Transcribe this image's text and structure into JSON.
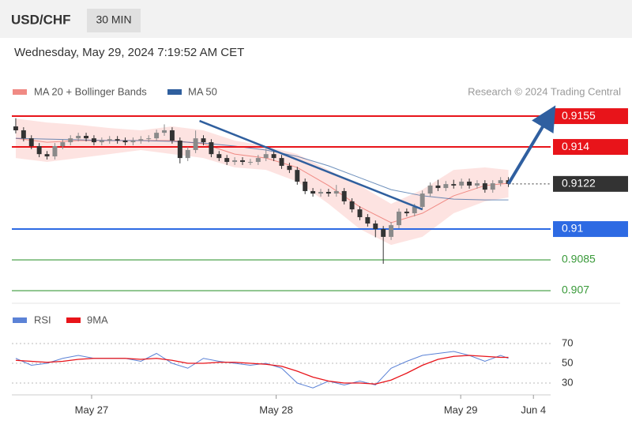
{
  "header": {
    "symbol": "USD/CHF",
    "interval": "30 MIN",
    "timestamp": "Wednesday, May 29, 2024 7:19:52 AM CET",
    "credit": "Research © 2024 Trading Central"
  },
  "chart_data": [
    {
      "type": "candlestick",
      "legend": [
        {
          "name": "MA 20 + Bollinger Bands",
          "color": "#f08a84"
        },
        {
          "name": "MA 50",
          "color": "#2f5f9e"
        }
      ],
      "candle_up_color": "#8a8a8a",
      "candle_down_color": "#333333",
      "xlim": [
        -0.5,
        68.4
      ],
      "ylim": [
        0.90654,
        0.91731
      ],
      "xticks": [
        {
          "value": 9.7,
          "label": "May 27"
        },
        {
          "value": 33.3,
          "label": "May 28"
        },
        {
          "value": 56.9,
          "label": "May 29"
        },
        {
          "value": 66.2,
          "label": "Jun 4"
        }
      ],
      "x": [
        0,
        1,
        2,
        3,
        4,
        5,
        6,
        7,
        8,
        9,
        10,
        11,
        12,
        13,
        14,
        15,
        16,
        17,
        18,
        19,
        20,
        21,
        22,
        23,
        24,
        25,
        26,
        27,
        28,
        29,
        30,
        31,
        32,
        33,
        34,
        35,
        36,
        37,
        38,
        39,
        40,
        41,
        42,
        43,
        44,
        45,
        46,
        47,
        48,
        49,
        50,
        51,
        52,
        53,
        54,
        55,
        56,
        57,
        58,
        59,
        60,
        61,
        62,
        63
      ],
      "open": [
        0.915,
        0.91481,
        0.91442,
        0.91404,
        0.91365,
        0.91354,
        0.91404,
        0.91423,
        0.91442,
        0.91454,
        0.91442,
        0.91423,
        0.91431,
        0.91438,
        0.91431,
        0.91423,
        0.91431,
        0.91438,
        0.91442,
        0.91469,
        0.91481,
        0.91431,
        0.91346,
        0.91385,
        0.91442,
        0.91423,
        0.91365,
        0.91346,
        0.91327,
        0.91335,
        0.91327,
        0.91327,
        0.91346,
        0.91365,
        0.91346,
        0.91308,
        0.91288,
        0.91231,
        0.91185,
        0.91173,
        0.91181,
        0.91173,
        0.91185,
        0.91135,
        0.91096,
        0.91058,
        0.91027,
        0.91,
        0.90962,
        0.91019,
        0.91085,
        0.91077,
        0.91108,
        0.91173,
        0.91212,
        0.912,
        0.91219,
        0.91212,
        0.91231,
        0.91212,
        0.91223,
        0.91192,
        0.91223,
        0.91238
      ],
      "high": [
        0.9154,
        0.91496,
        0.91457,
        0.91419,
        0.9138,
        0.91419,
        0.91438,
        0.91457,
        0.91469,
        0.91469,
        0.91457,
        0.91446,
        0.91453,
        0.91453,
        0.91446,
        0.91446,
        0.91453,
        0.91457,
        0.91484,
        0.9151,
        0.91496,
        0.91446,
        0.914,
        0.9148,
        0.91457,
        0.91438,
        0.9138,
        0.91361,
        0.9135,
        0.9135,
        0.91342,
        0.91361,
        0.9139,
        0.9138,
        0.91361,
        0.91323,
        0.91303,
        0.91246,
        0.912,
        0.91196,
        0.91196,
        0.91215,
        0.912,
        0.9115,
        0.91111,
        0.91073,
        0.91042,
        0.91015,
        0.91034,
        0.911,
        0.911,
        0.91123,
        0.91188,
        0.91227,
        0.9124,
        0.91234,
        0.9124,
        0.91246,
        0.91246,
        0.91238,
        0.91238,
        0.91238,
        0.91253,
        0.91253
      ],
      "low": [
        0.91466,
        0.91427,
        0.91389,
        0.9135,
        0.91339,
        0.91339,
        0.91389,
        0.91408,
        0.91427,
        0.91427,
        0.91408,
        0.91408,
        0.91416,
        0.91416,
        0.91408,
        0.91408,
        0.91416,
        0.91423,
        0.91427,
        0.91454,
        0.91416,
        0.9132,
        0.91331,
        0.9137,
        0.91408,
        0.9135,
        0.91331,
        0.91312,
        0.91312,
        0.91312,
        0.91312,
        0.91312,
        0.91331,
        0.91331,
        0.91293,
        0.91273,
        0.91216,
        0.9117,
        0.91158,
        0.91158,
        0.91158,
        0.91158,
        0.9112,
        0.91081,
        0.91043,
        0.91012,
        0.9096,
        0.90831,
        0.90947,
        0.91004,
        0.91062,
        0.91062,
        0.91093,
        0.91158,
        0.91185,
        0.91185,
        0.91197,
        0.91197,
        0.91197,
        0.91197,
        0.91177,
        0.91177,
        0.91208,
        0.91205
      ],
      "close": [
        0.91481,
        0.91442,
        0.91404,
        0.91365,
        0.91354,
        0.91404,
        0.91423,
        0.91442,
        0.91454,
        0.91442,
        0.91423,
        0.91431,
        0.91438,
        0.91431,
        0.91423,
        0.91431,
        0.91438,
        0.91442,
        0.91469,
        0.91481,
        0.91431,
        0.91346,
        0.91385,
        0.91442,
        0.91423,
        0.91365,
        0.91346,
        0.91327,
        0.91335,
        0.91327,
        0.91327,
        0.91346,
        0.91365,
        0.91346,
        0.91308,
        0.91288,
        0.91231,
        0.91185,
        0.91173,
        0.91181,
        0.91173,
        0.91185,
        0.91135,
        0.91096,
        0.91058,
        0.91027,
        0.91,
        0.90962,
        0.91019,
        0.91085,
        0.91077,
        0.91108,
        0.91173,
        0.91212,
        0.912,
        0.91219,
        0.91212,
        0.91231,
        0.91212,
        0.91223,
        0.91192,
        0.91223,
        0.91238,
        0.9122
      ],
      "bands": {
        "x": [
          0,
          4,
          8,
          12,
          16,
          20,
          24,
          28,
          32,
          36,
          40,
          44,
          48,
          52,
          56,
          60,
          63
        ],
        "upper": [
          0.91538,
          0.91519,
          0.91508,
          0.91492,
          0.91481,
          0.915,
          0.91481,
          0.91431,
          0.91404,
          0.91365,
          0.91288,
          0.91212,
          0.91123,
          0.91192,
          0.91288,
          0.913,
          0.91288
        ],
        "lower": [
          0.91346,
          0.91327,
          0.91346,
          0.91365,
          0.91385,
          0.91365,
          0.91346,
          0.913,
          0.91288,
          0.91231,
          0.91123,
          0.91,
          0.90923,
          0.90962,
          0.91077,
          0.91135,
          0.91154
        ],
        "ma20": [
          0.91442,
          0.91423,
          0.91431,
          0.91431,
          0.91431,
          0.91431,
          0.91415,
          0.91365,
          0.91346,
          0.913,
          0.91212,
          0.91108,
          0.91031,
          0.91077,
          0.91162,
          0.91212,
          0.91223
        ],
        "ma50": [
          0.91442,
          0.91438,
          0.91435,
          0.91431,
          0.91431,
          0.91427,
          0.91419,
          0.91404,
          0.91385,
          0.91354,
          0.91308,
          0.9125,
          0.91192,
          0.91162,
          0.91146,
          0.91142,
          0.91142
        ]
      },
      "levels": [
        {
          "value": 0.9155,
          "color": "#e8141a",
          "kind": "box"
        },
        {
          "value": 0.914,
          "color": "#e8141a",
          "kind": "box"
        },
        {
          "value": 0.9122,
          "color": "#333333",
          "kind": "current"
        },
        {
          "value": 0.91,
          "color": "#2d6ae3",
          "kind": "box"
        },
        {
          "value": 0.9085,
          "color": "#3a9a3a",
          "kind": "plain"
        },
        {
          "value": 0.907,
          "color": "#3a9a3a",
          "kind": "plain"
        }
      ],
      "trendline": {
        "x": [
          23.5,
          52
        ],
        "values": [
          0.91527,
          0.91096
        ],
        "color": "#2f5f9e"
      },
      "arrow": {
        "x": [
          63,
          68.2
        ],
        "values": [
          0.9122,
          0.9155
        ],
        "color": "#2f5fa0"
      }
    },
    {
      "type": "line",
      "xlim": [
        -0.5,
        68.4
      ],
      "ylim": [
        18,
        78
      ],
      "yticks": [
        70,
        50,
        30
      ],
      "x": [
        0,
        2,
        4,
        6,
        8,
        10,
        12,
        14,
        16,
        18,
        20,
        22,
        24,
        26,
        28,
        30,
        32,
        34,
        36,
        38,
        40,
        42,
        44,
        46,
        48,
        50,
        52,
        54,
        56,
        58,
        60,
        62,
        63
      ],
      "series": [
        {
          "name": "RSI",
          "color": "#5b82d6",
          "values": [
            55,
            48,
            50,
            55,
            58,
            55,
            55,
            55,
            52,
            60,
            50,
            45,
            55,
            52,
            50,
            48,
            50,
            45,
            30,
            25,
            32,
            28,
            32,
            28,
            45,
            52,
            58,
            60,
            62,
            58,
            52,
            58,
            55
          ]
        },
        {
          "name": "9MA",
          "color": "#e8141a",
          "values": [
            53,
            52,
            51,
            52,
            54,
            55,
            55,
            55,
            54,
            55,
            53,
            50,
            50,
            51,
            51,
            50,
            49,
            47,
            42,
            36,
            32,
            30,
            30,
            29,
            33,
            40,
            48,
            54,
            57,
            58,
            57,
            56,
            56
          ]
        }
      ]
    }
  ]
}
